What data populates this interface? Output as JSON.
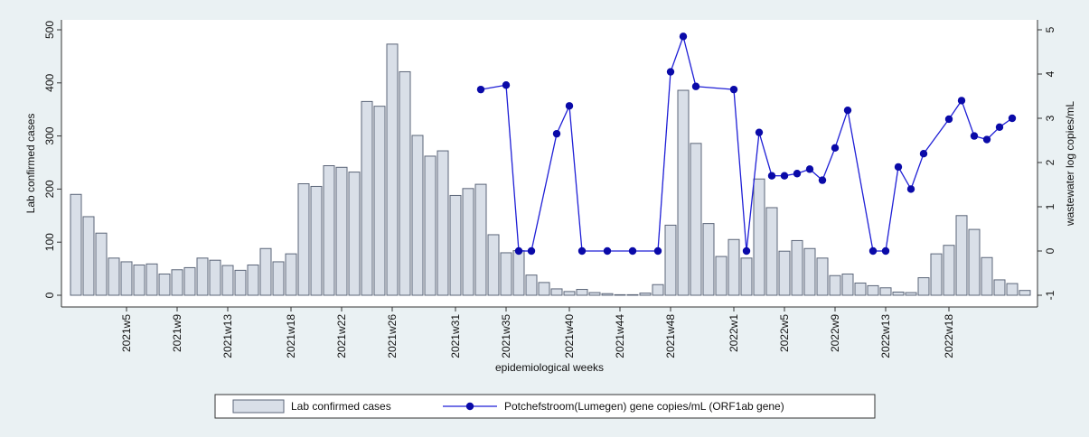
{
  "chart_data": {
    "type": "bar-line",
    "x_label": "epidemiological weeks",
    "y_label": "Lab confirmed cases",
    "y2_label": "wastewater log copies/mL",
    "categories": [
      null,
      null,
      null,
      null,
      "2021w5",
      null,
      null,
      null,
      "2021w9",
      null,
      null,
      null,
      "2021w13",
      null,
      null,
      null,
      null,
      "2021w18",
      null,
      null,
      null,
      "2021w22",
      null,
      null,
      null,
      "2021w26",
      null,
      null,
      null,
      null,
      "2021w31",
      null,
      null,
      null,
      "2021w35",
      null,
      null,
      null,
      null,
      "2021w40",
      null,
      null,
      null,
      "2021w44",
      null,
      null,
      null,
      "2021w48",
      null,
      null,
      null,
      null,
      "2022w1",
      null,
      null,
      null,
      "2022w5",
      null,
      null,
      null,
      "2022w9",
      null,
      null,
      null,
      "2022w13",
      null,
      null,
      null,
      null,
      "2022w18",
      null,
      null,
      null,
      null,
      null,
      null
    ],
    "series": [
      {
        "name": "Lab confirmed cases",
        "type": "bar",
        "color": "#d9dfe8",
        "values": [
          190,
          148,
          117,
          70,
          63,
          57,
          59,
          40,
          48,
          52,
          70,
          66,
          56,
          47,
          57,
          88,
          63,
          78,
          210,
          205,
          244,
          241,
          232,
          365,
          356,
          473,
          421,
          301,
          262,
          272,
          188,
          201,
          209,
          114,
          80,
          84,
          38,
          24,
          12,
          7,
          11,
          5,
          3,
          1,
          1,
          4,
          20,
          132,
          386,
          286,
          135,
          73,
          105,
          70,
          219,
          165,
          83,
          103,
          88,
          70,
          37,
          40,
          23,
          18,
          14,
          6,
          5,
          33,
          78,
          94,
          150,
          124,
          71,
          29,
          22,
          9
        ]
      },
      {
        "name": "Potchefstroom(Lumegen) gene copies/mL (ORF1ab gene)",
        "type": "line",
        "axis": "y2",
        "color": "#1f1fd6",
        "values": [
          null,
          null,
          null,
          null,
          null,
          null,
          null,
          null,
          null,
          null,
          null,
          null,
          null,
          null,
          null,
          null,
          null,
          null,
          null,
          null,
          null,
          null,
          null,
          null,
          null,
          null,
          null,
          null,
          null,
          null,
          null,
          null,
          3.65,
          null,
          3.75,
          0,
          0,
          null,
          2.65,
          3.28,
          0,
          null,
          0,
          null,
          0,
          null,
          0,
          4.05,
          4.85,
          3.72,
          null,
          null,
          3.65,
          0,
          2.68,
          1.7,
          1.7,
          1.75,
          1.85,
          1.6,
          2.33,
          3.18,
          null,
          0,
          0,
          1.9,
          1.4,
          2.2,
          null,
          2.98,
          3.4,
          2.6,
          2.52,
          2.8,
          3,
          null
        ]
      }
    ],
    "ylim": [
      0,
      500
    ],
    "yticks": [
      0,
      100,
      200,
      300,
      400,
      500
    ],
    "y2lim": [
      -1,
      5
    ],
    "y2ticks": [
      -1,
      0,
      1,
      2,
      3,
      4,
      5
    ],
    "legend": "bottom"
  }
}
